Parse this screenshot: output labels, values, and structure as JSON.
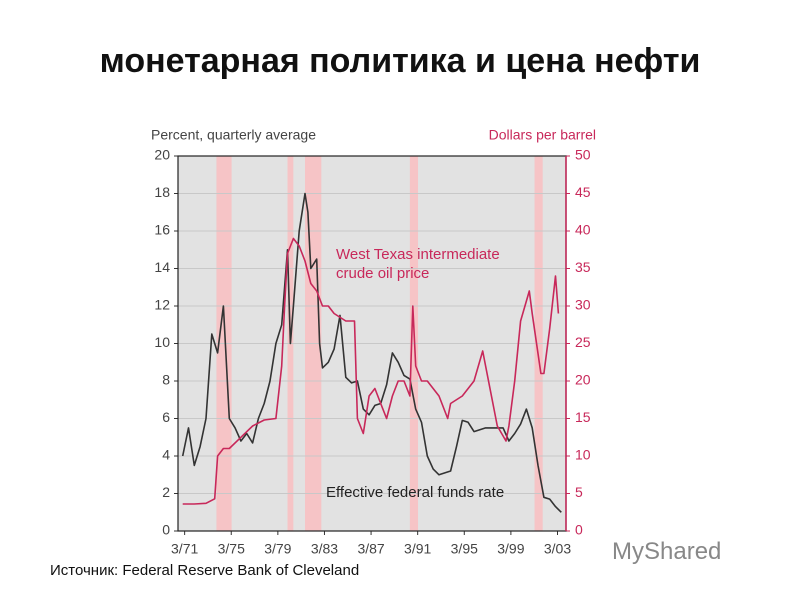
{
  "title": "монетарная политика и цена нефти",
  "source": "Источник: Federal Reserve Bank of Cleveland",
  "watermark": "MyShared",
  "chart_data": {
    "type": "line",
    "ylabel": "Percent, quarterly average",
    "y2label": "Dollars per barrel",
    "xlim": [
      1970.6,
      2003.9
    ],
    "xticks": [
      {
        "value": 1971.17,
        "label": "3/71"
      },
      {
        "value": 1975.17,
        "label": "3/75"
      },
      {
        "value": 1979.17,
        "label": "3/79"
      },
      {
        "value": 1983.17,
        "label": "3/83"
      },
      {
        "value": 1987.17,
        "label": "3/87"
      },
      {
        "value": 1991.17,
        "label": "3/91"
      },
      {
        "value": 1995.17,
        "label": "3/95"
      },
      {
        "value": 1999.17,
        "label": "3/99"
      },
      {
        "value": 2003.17,
        "label": "3/03"
      }
    ],
    "ylim": [
      0,
      20
    ],
    "yticks": [
      0,
      2,
      4,
      6,
      8,
      10,
      12,
      14,
      16,
      18,
      20
    ],
    "y2lim": [
      0,
      50
    ],
    "y2ticks": [
      0,
      5,
      10,
      15,
      20,
      25,
      30,
      35,
      40,
      45,
      50
    ],
    "grid": true,
    "shaded_periods": [
      [
        1973.9,
        1975.2
      ],
      [
        1980.0,
        1980.5
      ],
      [
        1981.5,
        1982.9
      ],
      [
        1990.5,
        1991.2
      ],
      [
        2001.2,
        2001.9
      ]
    ],
    "series": [
      {
        "name": "Effective federal funds rate",
        "color": "#333333",
        "axis": "y",
        "x": [
          1971,
          1971.5,
          1972,
          1972.5,
          1973,
          1973.5,
          1974,
          1974.5,
          1975,
          1975.5,
          1976,
          1976.5,
          1977,
          1977.5,
          1978,
          1978.5,
          1979,
          1979.5,
          1980,
          1980.25,
          1980.5,
          1981,
          1981.5,
          1981.75,
          1982,
          1982.5,
          1982.75,
          1983,
          1983.5,
          1984,
          1984.5,
          1985,
          1985.5,
          1986,
          1986.5,
          1987,
          1987.5,
          1988,
          1988.5,
          1989,
          1989.5,
          1990,
          1990.5,
          1991,
          1991.5,
          1992,
          1992.5,
          1993,
          1994,
          1994.5,
          1995,
          1995.5,
          1996,
          1997,
          1998,
          1998.5,
          1999,
          1999.5,
          2000,
          2000.5,
          2001,
          2001.5,
          2002,
          2002.5,
          2003,
          2003.5
        ],
        "values": [
          4,
          5.5,
          3.5,
          4.5,
          6,
          10.5,
          9.5,
          12,
          6,
          5.5,
          4.8,
          5.2,
          4.7,
          6,
          6.8,
          8,
          10,
          11,
          15,
          10,
          12,
          16,
          18,
          17,
          14,
          14.5,
          10,
          8.7,
          9,
          9.7,
          11.5,
          8.2,
          7.9,
          8,
          6.5,
          6.2,
          6.7,
          6.8,
          7.8,
          9.5,
          9,
          8.3,
          8.1,
          6.5,
          5.8,
          4,
          3.3,
          3,
          3.2,
          4.5,
          5.9,
          5.8,
          5.3,
          5.5,
          5.5,
          5.5,
          4.8,
          5.2,
          5.7,
          6.5,
          5.5,
          3.5,
          1.8,
          1.7,
          1.3,
          1.0
        ]
      },
      {
        "name": "West Texas intermediate crude oil price",
        "color": "#c8285a",
        "axis": "y2",
        "x": [
          1971,
          1972,
          1973,
          1973.75,
          1974,
          1974.5,
          1975,
          1976,
          1977,
          1978,
          1979,
          1979.5,
          1979.75,
          1980,
          1980.5,
          1981,
          1981.5,
          1982,
          1982.5,
          1983,
          1983.5,
          1984,
          1985,
          1985.75,
          1986,
          1986.5,
          1987,
          1987.5,
          1988,
          1988.5,
          1989,
          1989.5,
          1990,
          1990.5,
          1990.75,
          1991,
          1991.5,
          1992,
          1993,
          1993.75,
          1994,
          1995,
          1996,
          1996.75,
          1997,
          1998,
          1998.75,
          1999,
          1999.5,
          2000,
          2000.75,
          2001,
          2001.75,
          2002,
          2002.5,
          2003,
          2003.25
        ],
        "values": [
          3.6,
          3.6,
          3.7,
          4.3,
          10,
          11,
          11,
          12.5,
          14,
          14.8,
          15,
          22,
          30,
          37,
          39,
          38,
          36,
          33,
          32,
          30,
          30,
          29,
          28,
          28,
          15,
          13,
          18,
          19,
          17,
          15,
          18,
          20,
          20,
          18,
          30,
          22,
          20,
          20,
          18,
          15,
          17,
          18,
          20,
          24,
          22,
          14,
          12,
          14,
          20,
          28,
          32,
          29,
          21,
          21,
          27,
          34,
          29
        ]
      }
    ]
  }
}
